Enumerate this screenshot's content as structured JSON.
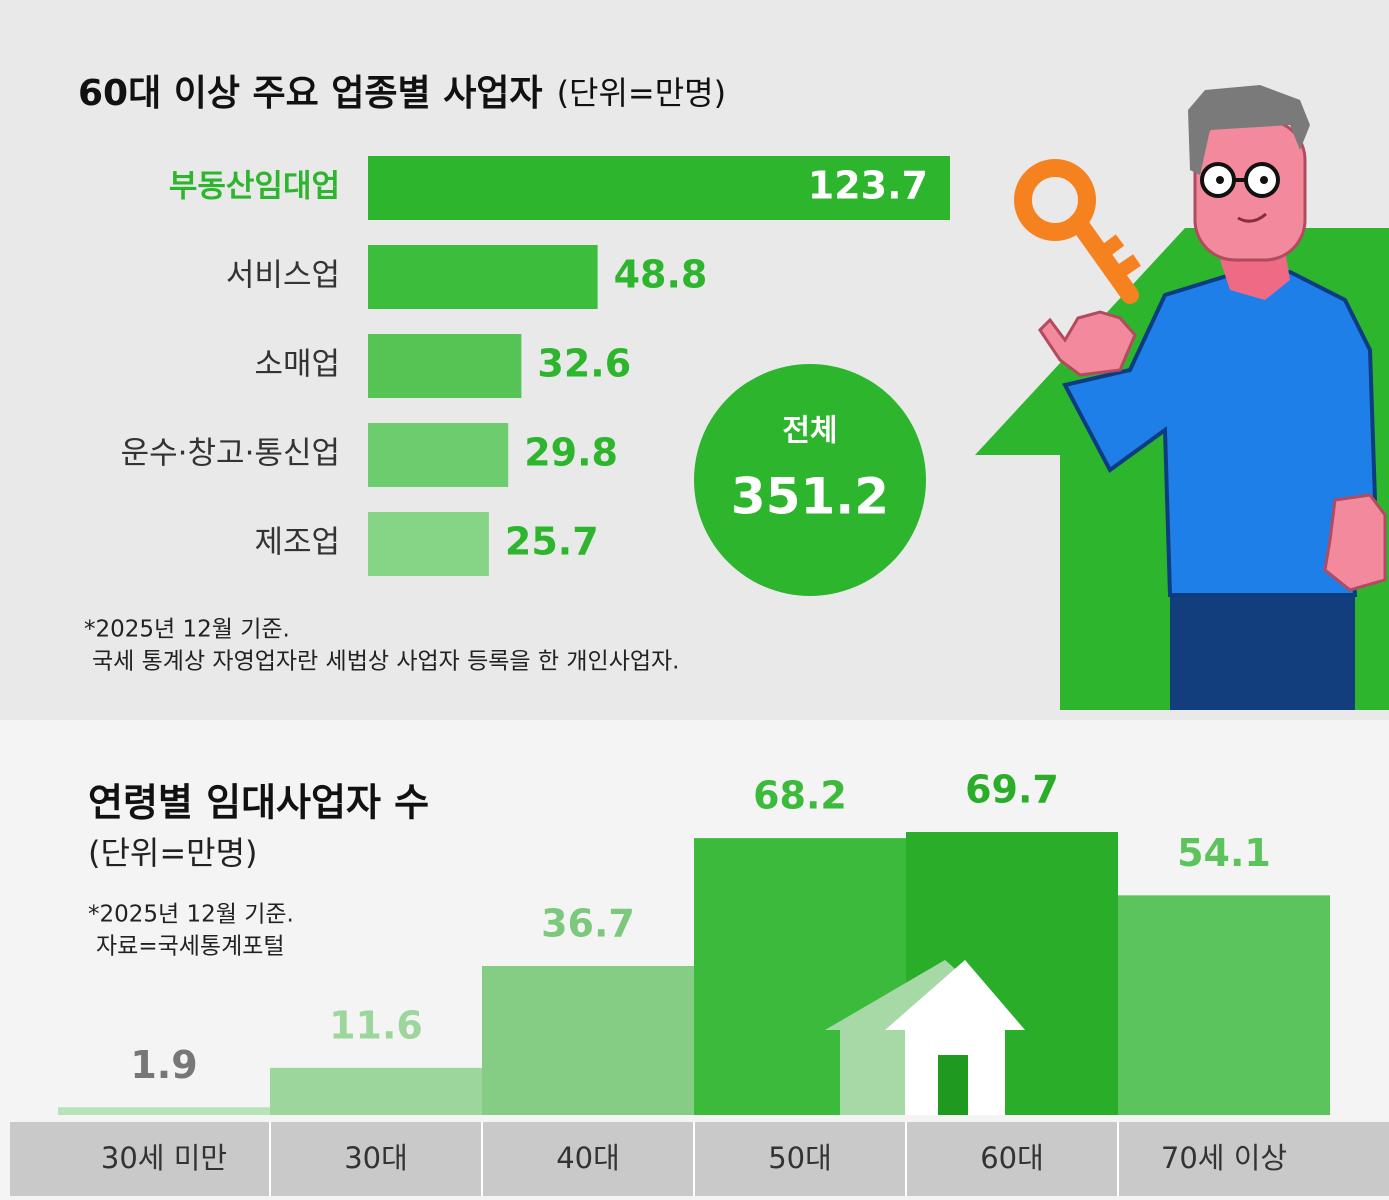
{
  "chart_data": [
    {
      "type": "barh",
      "title": "60대 이상 주요 업종별 사업자",
      "unit": "(단위=만명)",
      "categories": [
        "부동산임대업",
        "서비스업",
        "소매업",
        "운수·창고·통신업",
        "제조업"
      ],
      "values": [
        123.7,
        48.8,
        32.6,
        29.8,
        25.7
      ],
      "colors": [
        "#2db52d",
        "#3cbd3c",
        "#55c455",
        "#6dcc6d",
        "#86d486"
      ],
      "category_label_colors": [
        "#2db52d",
        "#333333",
        "#333333",
        "#333333",
        "#333333"
      ],
      "value_label_color": "#2db52d",
      "total_label": "전체",
      "total": 351.2,
      "notes": [
        "*2025년 12월 기준.",
        "국세 통계상 자영업자란 세법상 사업자 등록을 한 개인사업자."
      ]
    },
    {
      "type": "bar",
      "title": "연령별 임대사업자 수",
      "unit": "(단위=만명)",
      "categories": [
        "30세 미만",
        "30대",
        "40대",
        "50대",
        "60대",
        "70세 이상"
      ],
      "values": [
        1.9,
        11.6,
        36.7,
        68.2,
        69.7,
        54.1
      ],
      "colors": [
        "#b8e2b8",
        "#9dd69d",
        "#85cc85",
        "#3cba3c",
        "#2aae2a",
        "#5cc45c"
      ],
      "label_colors": [
        "#777777",
        "#9dd69d",
        "#7cc87c",
        "#3cba3c",
        "#2aae2a",
        "#5cc45c"
      ],
      "notes": [
        "*2025년 12월 기준.",
        "자료=국세통계포털"
      ]
    }
  ]
}
